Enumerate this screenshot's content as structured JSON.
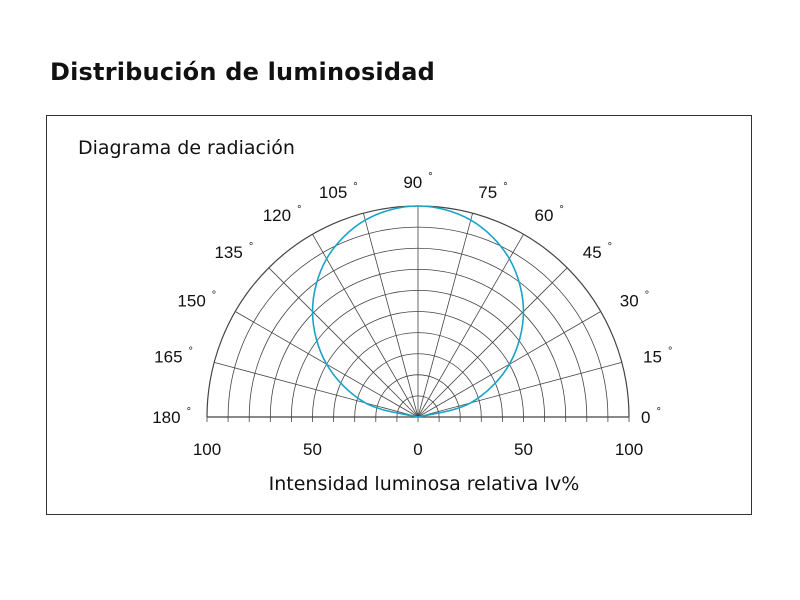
{
  "page": {
    "title": "Distribución de luminosidad"
  },
  "chart_data": {
    "type": "polar",
    "title": "Diagrama de radiación",
    "xlabel": "Intensidad luminosa relativa Iv%",
    "angular_range_deg": [
      0,
      180
    ],
    "angular_step_deg": 15,
    "angle_labels": [
      "0",
      "15",
      "30",
      "45",
      "60",
      "75",
      "90",
      "105",
      "120",
      "135",
      "150",
      "165",
      "180"
    ],
    "degree_symbol": "°",
    "radial_range": [
      0,
      100
    ],
    "radial_rings": 10,
    "radial_tick_labels": [
      "100",
      "50",
      "0",
      "50",
      "100"
    ],
    "grid": true,
    "series": [
      {
        "angles_deg": [
          0,
          15,
          30,
          45,
          60,
          75,
          90,
          105,
          120,
          135,
          150,
          165,
          180
        ],
        "values": [
          0,
          25.9,
          50,
          70.7,
          86.6,
          96.6,
          100,
          96.6,
          86.6,
          70.7,
          50,
          25.9,
          0
        ],
        "color": "#1aa3c8"
      }
    ],
    "colors": {
      "grid": "#444444",
      "curve": "#1aa3c8"
    }
  }
}
